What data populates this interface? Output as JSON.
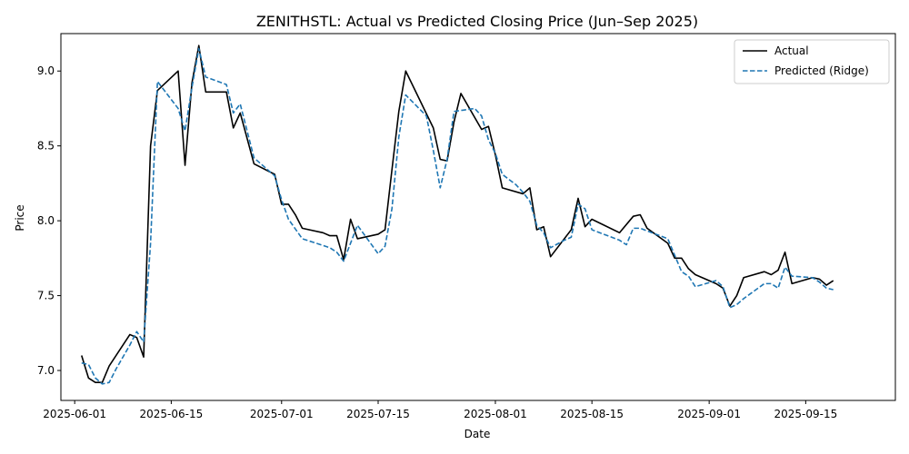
{
  "chart_data": {
    "type": "line",
    "title": "ZENITHSTL: Actual vs Predicted Closing Price (Jun–Sep 2025)",
    "xlabel": "Date",
    "ylabel": "Price",
    "x_range": [
      "2025-05-30",
      "2025-09-28"
    ],
    "ylim": [
      6.8,
      9.25
    ],
    "x_ticks": [
      "2025-06-01",
      "2025-06-15",
      "2025-07-01",
      "2025-07-15",
      "2025-08-01",
      "2025-08-15",
      "2025-09-01",
      "2025-09-15"
    ],
    "y_ticks": [
      "7.0",
      "7.5",
      "8.0",
      "8.5",
      "9.0"
    ],
    "grid": false,
    "legend_position": "top-right",
    "series": [
      {
        "name": "Actual",
        "color": "#000000",
        "style": "solid",
        "points": [
          [
            "2025-06-02",
            7.1
          ],
          [
            "2025-06-03",
            6.95
          ],
          [
            "2025-06-04",
            6.92
          ],
          [
            "2025-06-05",
            6.92
          ],
          [
            "2025-06-06",
            7.03
          ],
          [
            "2025-06-09",
            7.24
          ],
          [
            "2025-06-10",
            7.22
          ],
          [
            "2025-06-11",
            7.09
          ],
          [
            "2025-06-12",
            8.5
          ],
          [
            "2025-06-13",
            8.87
          ],
          [
            "2025-06-16",
            9.0
          ],
          [
            "2025-06-17",
            8.37
          ],
          [
            "2025-06-18",
            8.92
          ],
          [
            "2025-06-19",
            9.17
          ],
          [
            "2025-06-20",
            8.86
          ],
          [
            "2025-06-23",
            8.86
          ],
          [
            "2025-06-24",
            8.62
          ],
          [
            "2025-06-25",
            8.72
          ],
          [
            "2025-06-27",
            8.38
          ],
          [
            "2025-06-30",
            8.31
          ],
          [
            "2025-07-01",
            8.11
          ],
          [
            "2025-07-02",
            8.11
          ],
          [
            "2025-07-03",
            8.04
          ],
          [
            "2025-07-04",
            7.95
          ],
          [
            "2025-07-07",
            7.92
          ],
          [
            "2025-07-08",
            7.9
          ],
          [
            "2025-07-09",
            7.9
          ],
          [
            "2025-07-10",
            7.74
          ],
          [
            "2025-07-11",
            8.01
          ],
          [
            "2025-07-12",
            7.88
          ],
          [
            "2025-07-15",
            7.91
          ],
          [
            "2025-07-16",
            7.94
          ],
          [
            "2025-07-17",
            8.34
          ],
          [
            "2025-07-18",
            8.73
          ],
          [
            "2025-07-19",
            9.0
          ],
          [
            "2025-07-23",
            8.62
          ],
          [
            "2025-07-24",
            8.41
          ],
          [
            "2025-07-25",
            8.4
          ],
          [
            "2025-07-26",
            8.66
          ],
          [
            "2025-07-27",
            8.85
          ],
          [
            "2025-07-30",
            8.61
          ],
          [
            "2025-07-31",
            8.63
          ],
          [
            "2025-08-01",
            8.44
          ],
          [
            "2025-08-02",
            8.22
          ],
          [
            "2025-08-05",
            8.18
          ],
          [
            "2025-08-06",
            8.22
          ],
          [
            "2025-08-07",
            7.94
          ],
          [
            "2025-08-08",
            7.96
          ],
          [
            "2025-08-09",
            7.76
          ],
          [
            "2025-08-12",
            7.94
          ],
          [
            "2025-08-13",
            8.15
          ],
          [
            "2025-08-14",
            7.96
          ],
          [
            "2025-08-15",
            8.01
          ],
          [
            "2025-08-19",
            7.92
          ],
          [
            "2025-08-21",
            8.03
          ],
          [
            "2025-08-22",
            8.04
          ],
          [
            "2025-08-23",
            7.95
          ],
          [
            "2025-08-26",
            7.85
          ],
          [
            "2025-08-27",
            7.75
          ],
          [
            "2025-08-28",
            7.75
          ],
          [
            "2025-08-29",
            7.68
          ],
          [
            "2025-08-30",
            7.64
          ],
          [
            "2025-09-02",
            7.58
          ],
          [
            "2025-09-03",
            7.55
          ],
          [
            "2025-09-04",
            7.43
          ],
          [
            "2025-09-05",
            7.5
          ],
          [
            "2025-09-06",
            7.62
          ],
          [
            "2025-09-09",
            7.66
          ],
          [
            "2025-09-10",
            7.64
          ],
          [
            "2025-09-11",
            7.67
          ],
          [
            "2025-09-12",
            7.79
          ],
          [
            "2025-09-13",
            7.58
          ],
          [
            "2025-09-16",
            7.62
          ],
          [
            "2025-09-17",
            7.61
          ],
          [
            "2025-09-18",
            7.57
          ],
          [
            "2025-09-19",
            7.6
          ]
        ]
      },
      {
        "name": "Predicted (Ridge)",
        "color": "#1f77b4",
        "style": "dashed",
        "points": [
          [
            "2025-06-02",
            7.05
          ],
          [
            "2025-06-03",
            7.04
          ],
          [
            "2025-06-04",
            6.95
          ],
          [
            "2025-06-05",
            6.91
          ],
          [
            "2025-06-06",
            6.92
          ],
          [
            "2025-06-07",
            7.01
          ],
          [
            "2025-06-09",
            7.17
          ],
          [
            "2025-06-10",
            7.26
          ],
          [
            "2025-06-11",
            7.19
          ],
          [
            "2025-06-12",
            7.85
          ],
          [
            "2025-06-13",
            8.93
          ],
          [
            "2025-06-16",
            8.75
          ],
          [
            "2025-06-17",
            8.6
          ],
          [
            "2025-06-18",
            8.89
          ],
          [
            "2025-06-19",
            9.15
          ],
          [
            "2025-06-20",
            8.96
          ],
          [
            "2025-06-23",
            8.91
          ],
          [
            "2025-06-24",
            8.72
          ],
          [
            "2025-06-25",
            8.78
          ],
          [
            "2025-06-27",
            8.42
          ],
          [
            "2025-06-30",
            8.3
          ],
          [
            "2025-07-01",
            8.14
          ],
          [
            "2025-07-02",
            8.01
          ],
          [
            "2025-07-04",
            7.88
          ],
          [
            "2025-07-08",
            7.82
          ],
          [
            "2025-07-09",
            7.79
          ],
          [
            "2025-07-10",
            7.73
          ],
          [
            "2025-07-12",
            7.97
          ],
          [
            "2025-07-15",
            7.78
          ],
          [
            "2025-07-16",
            7.83
          ],
          [
            "2025-07-17",
            8.08
          ],
          [
            "2025-07-18",
            8.56
          ],
          [
            "2025-07-19",
            8.84
          ],
          [
            "2025-07-22",
            8.7
          ],
          [
            "2025-07-23",
            8.47
          ],
          [
            "2025-07-24",
            8.22
          ],
          [
            "2025-07-25",
            8.41
          ],
          [
            "2025-07-26",
            8.73
          ],
          [
            "2025-07-29",
            8.75
          ],
          [
            "2025-07-30",
            8.7
          ],
          [
            "2025-07-31",
            8.54
          ],
          [
            "2025-08-01",
            8.45
          ],
          [
            "2025-08-02",
            8.31
          ],
          [
            "2025-08-04",
            8.24
          ],
          [
            "2025-08-05",
            8.19
          ],
          [
            "2025-08-06",
            8.13
          ],
          [
            "2025-08-07",
            7.97
          ],
          [
            "2025-08-08",
            7.92
          ],
          [
            "2025-08-09",
            7.82
          ],
          [
            "2025-08-11",
            7.87
          ],
          [
            "2025-08-12",
            7.89
          ],
          [
            "2025-08-13",
            8.11
          ],
          [
            "2025-08-14",
            8.08
          ],
          [
            "2025-08-15",
            7.94
          ],
          [
            "2025-08-19",
            7.87
          ],
          [
            "2025-08-20",
            7.84
          ],
          [
            "2025-08-21",
            7.95
          ],
          [
            "2025-08-22",
            7.95
          ],
          [
            "2025-08-26",
            7.88
          ],
          [
            "2025-08-27",
            7.77
          ],
          [
            "2025-08-28",
            7.66
          ],
          [
            "2025-08-29",
            7.63
          ],
          [
            "2025-08-30",
            7.56
          ],
          [
            "2025-09-02",
            7.6
          ],
          [
            "2025-09-03",
            7.56
          ],
          [
            "2025-09-04",
            7.42
          ],
          [
            "2025-09-05",
            7.44
          ],
          [
            "2025-09-06",
            7.48
          ],
          [
            "2025-09-09",
            7.58
          ],
          [
            "2025-09-10",
            7.58
          ],
          [
            "2025-09-11",
            7.55
          ],
          [
            "2025-09-12",
            7.69
          ],
          [
            "2025-09-13",
            7.63
          ],
          [
            "2025-09-16",
            7.62
          ],
          [
            "2025-09-17",
            7.59
          ],
          [
            "2025-09-18",
            7.55
          ],
          [
            "2025-09-19",
            7.54
          ]
        ]
      }
    ]
  }
}
